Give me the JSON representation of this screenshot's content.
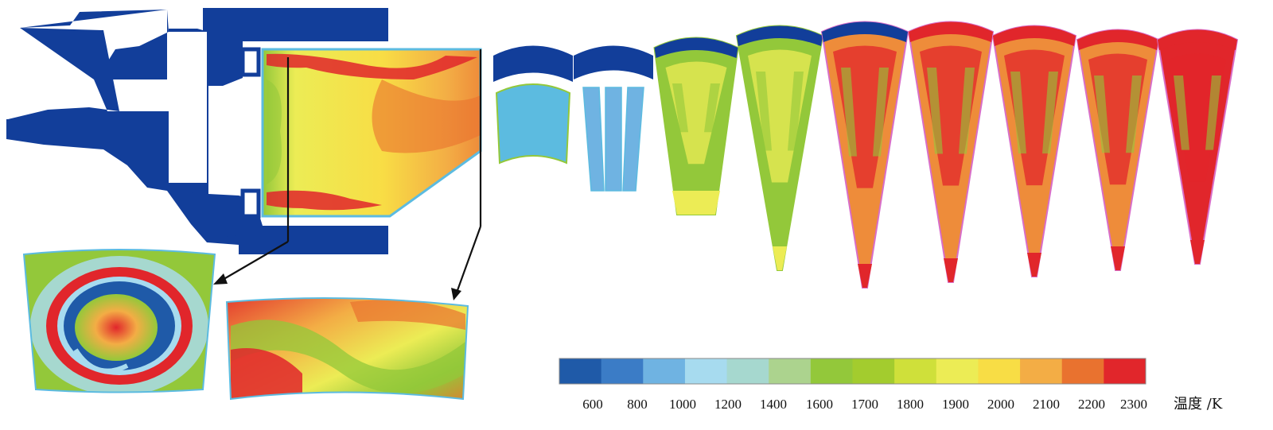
{
  "colorbar": {
    "ticks": [
      "600",
      "800",
      "1000",
      "1200",
      "1400",
      "1600",
      "1700",
      "1800",
      "1900",
      "2000",
      "2100",
      "2200",
      "2300"
    ],
    "unit_label": "温度 /K",
    "colors": [
      "#1f5aa8",
      "#3b7cc6",
      "#6fb3e2",
      "#a7dbef",
      "#a6d8cf",
      "#acd38e",
      "#93c83a",
      "#a3cc2e",
      "#cfe03a",
      "#ecec55",
      "#f8dd45",
      "#f3ad45",
      "#e9722f",
      "#e1262b"
    ]
  },
  "palette": {
    "solid_blue": "#123e9a",
    "cool": "#5cbbe0",
    "cold": "#1f5aa8",
    "green": "#93c83a",
    "yellow": "#ecec55",
    "orange": "#ee8c3a",
    "red": "#e1262b",
    "pink_outline": "#d86ec8"
  },
  "sector_series": [
    {
      "kind": "annular-band",
      "tip": "#5cbbe0",
      "core": "#5cbbe0",
      "cap": "#123e9a"
    },
    {
      "kind": "split-strips",
      "tip": "#5cbbe0",
      "core": "#6fb3e2",
      "cap": "#123e9a"
    },
    {
      "kind": "short-sector",
      "tip": "#ecec55",
      "core": "#93c83a",
      "cap": "#123e9a"
    },
    {
      "kind": "sector",
      "tip": "#ecec55",
      "core": "#93c83a",
      "cap": "#123e9a"
    },
    {
      "kind": "sector",
      "tip": "#e1262b",
      "core": "#ee8c3a",
      "cap": "#123e9a"
    },
    {
      "kind": "sector",
      "tip": "#e1262b",
      "core": "#ee8c3a",
      "cap": "#e1262b"
    },
    {
      "kind": "sector",
      "tip": "#e1262b",
      "core": "#ee8c3a",
      "cap": "#e1262b"
    },
    {
      "kind": "sector",
      "tip": "#e1262b",
      "core": "#ee8c3a",
      "cap": "#e1262b"
    },
    {
      "kind": "sector",
      "tip": "#e1262b",
      "core": "#e1262b",
      "cap": "#e1262b"
    }
  ]
}
